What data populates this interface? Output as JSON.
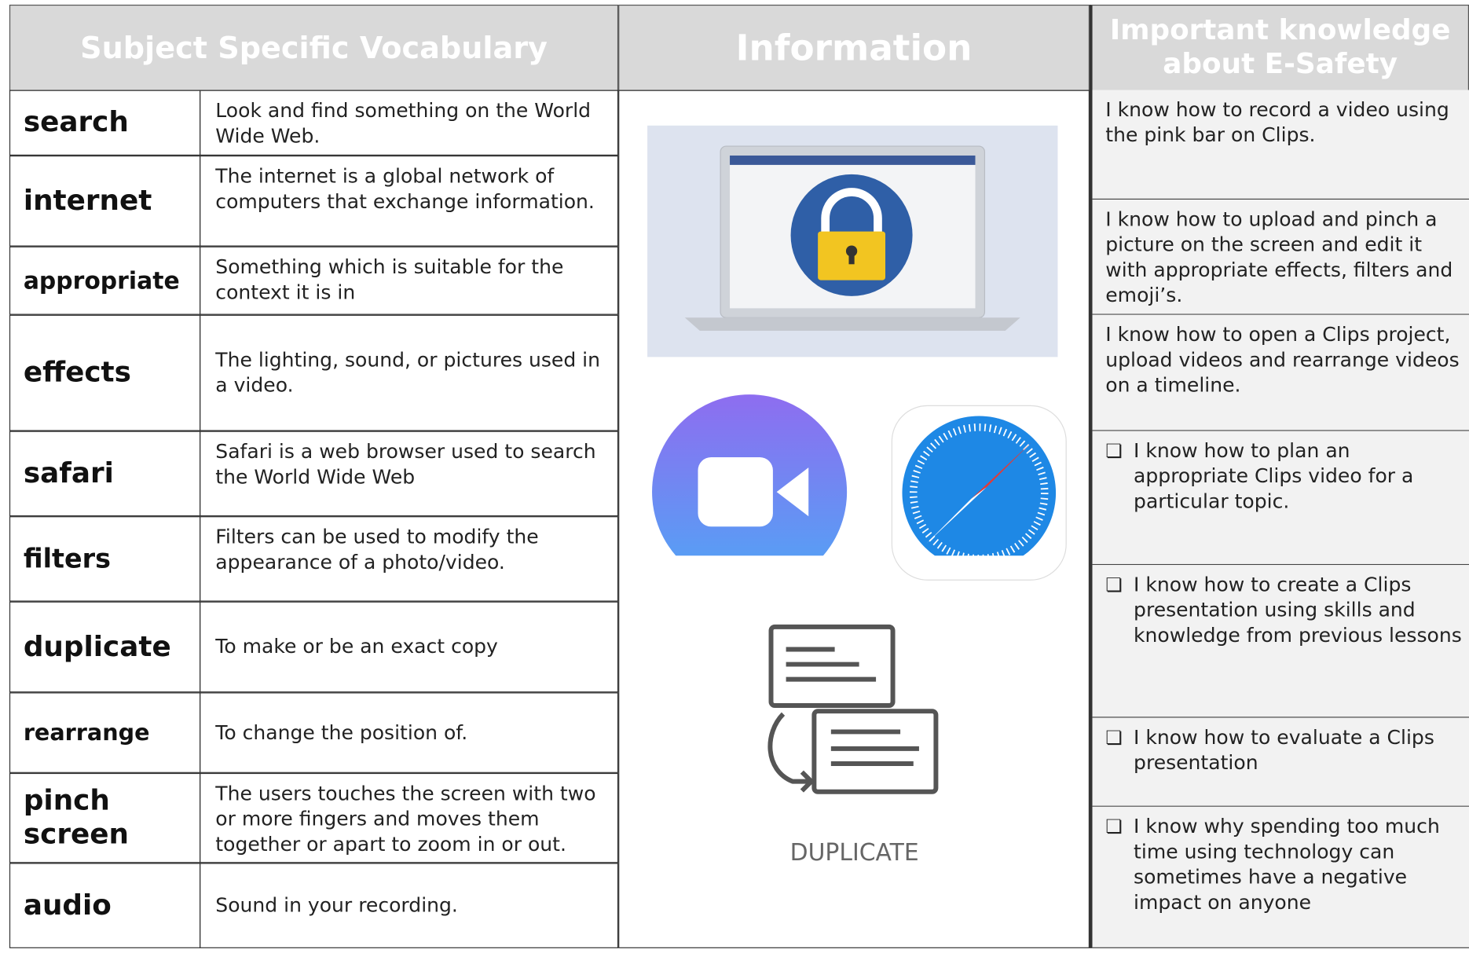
{
  "header": {
    "vocabulary": "Subject Specific Vocabulary",
    "information": "Information",
    "knowledge": "Important knowledge about E-Safety"
  },
  "vocabulary": [
    [
      "search",
      "Look and find something on the World Wide Web."
    ],
    [
      "internet",
      "The internet is a global network of computers that exchange information."
    ],
    [
      "appropriate",
      "Something which is suitable for the context it is in"
    ],
    [
      "effects",
      "The lighting, sound, or pictures used in a video."
    ],
    [
      "safari",
      "Safari is a web browser used to search the World Wide Web"
    ],
    [
      "filters",
      "Filters can be used to modify the appearance of a photo/video."
    ],
    [
      "duplicate",
      "To make or be an exact copy"
    ],
    [
      "rearrange",
      "To change the position of."
    ],
    [
      "pinch screen",
      "The users touches the screen with two or more fingers and moves them together or apart to zoom in or out."
    ],
    [
      "audio",
      "Sound in your recording."
    ]
  ],
  "information": {
    "duplicate_caption": "DUPLICATE"
  },
  "knowledge": [
    "I know how to record a video using the pink bar on Clips.",
    "I know how to upload and pinch a picture on the screen and edit it with appropriate effects, filters and emoji’s.",
    "I know how to open a Clips project, upload videos and rearrange videos on a timeline.",
    "I know how to plan an appropriate Clips video for a particular topic.",
    "I know how to create a Clips presentation using skills and knowledge from previous lessons",
    "I know how to evaluate a Clips presentation",
    "I know why spending too much time using technology can sometimes have a negative impact on anyone"
  ]
}
